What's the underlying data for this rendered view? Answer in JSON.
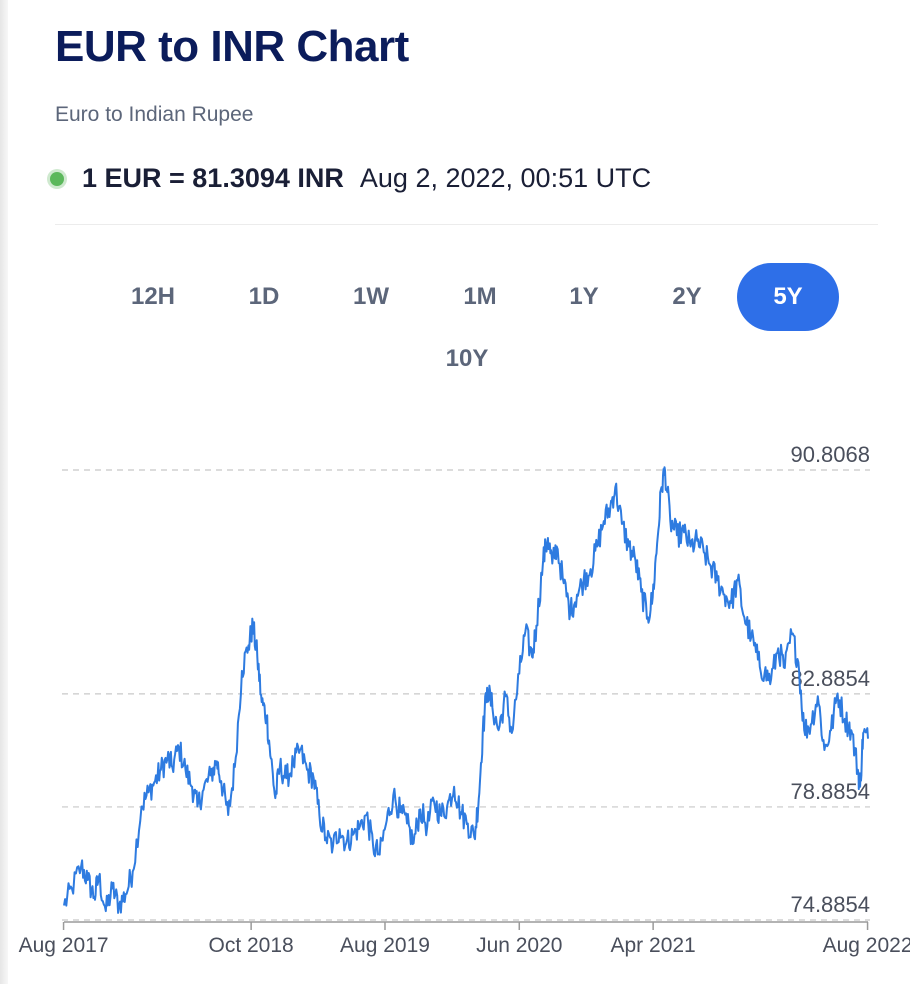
{
  "header": {
    "title": "EUR to INR Chart",
    "subtitle": "Euro to Indian Rupee",
    "rate": "1 EUR = 81.3094 INR",
    "timestamp": "Aug 2, 2022, 00:51 UTC",
    "live_color": "#5cb85c"
  },
  "ranges": {
    "items": [
      "12H",
      "1D",
      "1W",
      "1M",
      "1Y",
      "2Y",
      "5Y",
      "10Y"
    ],
    "active": "5Y",
    "active_color": "#2e6fe8"
  },
  "chart_data": {
    "type": "line",
    "line_color": "#2e7be0",
    "y_ticks": [
      "90.8068",
      "82.8854",
      "78.8854",
      "74.8854"
    ],
    "y_min": 74.8854,
    "y_max": 90.8068,
    "x_ticks": [
      "Aug 2017",
      "Oct 2018",
      "Aug 2019",
      "Jun 2020",
      "Apr 2021",
      "Aug 2022"
    ],
    "x_tick_dates": [
      "2017-08-01",
      "2018-10-01",
      "2019-08-01",
      "2020-06-01",
      "2021-04-01",
      "2022-08-01"
    ],
    "x_range": [
      "2017-08-02",
      "2022-08-02"
    ],
    "grid": "horizontal-dashed",
    "series": [
      {
        "values": [
          [
            "2017-08-02",
            75.4
          ],
          [
            "2017-08-20",
            76.0
          ],
          [
            "2017-09-10",
            76.8
          ],
          [
            "2017-09-25",
            76.3
          ],
          [
            "2017-10-10",
            75.7
          ],
          [
            "2017-10-20",
            76.4
          ],
          [
            "2017-11-05",
            75.2
          ],
          [
            "2017-11-20",
            76.0
          ],
          [
            "2017-12-05",
            75.4
          ],
          [
            "2017-12-20",
            75.8
          ],
          [
            "2018-01-05",
            76.6
          ],
          [
            "2018-01-25",
            78.9
          ],
          [
            "2018-02-10",
            79.4
          ],
          [
            "2018-02-25",
            79.8
          ],
          [
            "2018-03-10",
            80.2
          ],
          [
            "2018-03-25",
            80.6
          ],
          [
            "2018-04-05",
            80.3
          ],
          [
            "2018-04-20",
            81.0
          ],
          [
            "2018-05-05",
            80.2
          ],
          [
            "2018-05-20",
            79.6
          ],
          [
            "2018-06-01",
            78.9
          ],
          [
            "2018-06-15",
            79.5
          ],
          [
            "2018-07-01",
            80.0
          ],
          [
            "2018-07-15",
            80.5
          ],
          [
            "2018-07-25",
            79.8
          ],
          [
            "2018-08-10",
            78.6
          ],
          [
            "2018-08-25",
            80.3
          ],
          [
            "2018-09-10",
            83.7
          ],
          [
            "2018-09-25",
            84.6
          ],
          [
            "2018-10-05",
            85.3
          ],
          [
            "2018-10-15",
            84.2
          ],
          [
            "2018-10-25",
            82.6
          ],
          [
            "2018-11-05",
            82.1
          ],
          [
            "2018-11-15",
            80.6
          ],
          [
            "2018-11-25",
            79.2
          ],
          [
            "2018-12-05",
            80.3
          ],
          [
            "2018-12-20",
            79.9
          ],
          [
            "2019-01-05",
            80.4
          ],
          [
            "2019-01-20",
            80.9
          ],
          [
            "2019-02-05",
            80.2
          ],
          [
            "2019-02-20",
            79.9
          ],
          [
            "2019-03-05",
            78.6
          ],
          [
            "2019-03-20",
            77.8
          ],
          [
            "2019-04-05",
            77.5
          ],
          [
            "2019-04-20",
            78.1
          ],
          [
            "2019-05-05",
            77.6
          ],
          [
            "2019-05-20",
            77.9
          ],
          [
            "2019-06-05",
            78.2
          ],
          [
            "2019-06-20",
            78.6
          ],
          [
            "2019-07-05",
            77.5
          ],
          [
            "2019-07-20",
            77.2
          ],
          [
            "2019-08-05",
            78.4
          ],
          [
            "2019-08-20",
            79.3
          ],
          [
            "2019-09-05",
            78.7
          ],
          [
            "2019-09-20",
            78.3
          ],
          [
            "2019-10-05",
            77.6
          ],
          [
            "2019-10-20",
            78.8
          ],
          [
            "2019-11-05",
            78.2
          ],
          [
            "2019-11-20",
            79.1
          ],
          [
            "2019-12-05",
            78.6
          ],
          [
            "2019-12-20",
            78.9
          ],
          [
            "2020-01-05",
            79.6
          ],
          [
            "2020-01-20",
            78.7
          ],
          [
            "2020-02-05",
            78.3
          ],
          [
            "2020-02-20",
            77.8
          ],
          [
            "2020-03-01",
            79.2
          ],
          [
            "2020-03-10",
            81.5
          ],
          [
            "2020-03-20",
            83.1
          ],
          [
            "2020-04-01",
            82.4
          ],
          [
            "2020-04-15",
            81.6
          ],
          [
            "2020-05-01",
            82.8
          ],
          [
            "2020-05-15",
            81.5
          ],
          [
            "2020-06-01",
            83.6
          ],
          [
            "2020-06-15",
            85.1
          ],
          [
            "2020-06-30",
            84.2
          ],
          [
            "2020-07-10",
            85.3
          ],
          [
            "2020-07-25",
            87.6
          ],
          [
            "2020-08-05",
            88.4
          ],
          [
            "2020-08-15",
            87.5
          ],
          [
            "2020-08-25",
            88.1
          ],
          [
            "2020-09-10",
            86.8
          ],
          [
            "2020-09-25",
            85.8
          ],
          [
            "2020-10-10",
            86.4
          ],
          [
            "2020-10-25",
            86.9
          ],
          [
            "2020-11-10",
            87.3
          ],
          [
            "2020-11-25",
            88.1
          ],
          [
            "2020-12-10",
            89.0
          ],
          [
            "2020-12-25",
            89.5
          ],
          [
            "2021-01-05",
            90.2
          ],
          [
            "2021-01-20",
            88.9
          ],
          [
            "2021-02-05",
            88.1
          ],
          [
            "2021-02-20",
            87.6
          ],
          [
            "2021-03-05",
            86.5
          ],
          [
            "2021-03-20",
            85.6
          ],
          [
            "2021-03-31",
            86.3
          ],
          [
            "2021-04-10",
            88.2
          ],
          [
            "2021-04-20",
            90.2
          ],
          [
            "2021-04-28",
            90.8
          ],
          [
            "2021-05-10",
            89.0
          ],
          [
            "2021-05-25",
            88.5
          ],
          [
            "2021-06-10",
            88.6
          ],
          [
            "2021-06-25",
            88.1
          ],
          [
            "2021-07-10",
            88.3
          ],
          [
            "2021-07-25",
            87.9
          ],
          [
            "2021-08-10",
            87.4
          ],
          [
            "2021-08-25",
            86.9
          ],
          [
            "2021-09-10",
            86.4
          ],
          [
            "2021-09-25",
            86.1
          ],
          [
            "2021-10-10",
            86.9
          ],
          [
            "2021-10-25",
            85.6
          ],
          [
            "2021-11-10",
            84.9
          ],
          [
            "2021-11-25",
            84.1
          ],
          [
            "2021-12-10",
            83.6
          ],
          [
            "2021-12-25",
            83.4
          ],
          [
            "2022-01-10",
            84.5
          ],
          [
            "2022-01-25",
            83.8
          ],
          [
            "2022-02-10",
            85.0
          ],
          [
            "2022-02-25",
            84.0
          ],
          [
            "2022-03-10",
            81.6
          ],
          [
            "2022-03-25",
            81.8
          ],
          [
            "2022-04-10",
            82.8
          ],
          [
            "2022-04-25",
            80.9
          ],
          [
            "2022-05-10",
            81.6
          ],
          [
            "2022-05-25",
            82.9
          ],
          [
            "2022-06-10",
            82.0
          ],
          [
            "2022-06-25",
            81.6
          ],
          [
            "2022-07-10",
            80.2
          ],
          [
            "2022-07-15",
            79.6
          ],
          [
            "2022-07-22",
            81.5
          ],
          [
            "2022-08-02",
            81.3
          ]
        ]
      }
    ]
  }
}
